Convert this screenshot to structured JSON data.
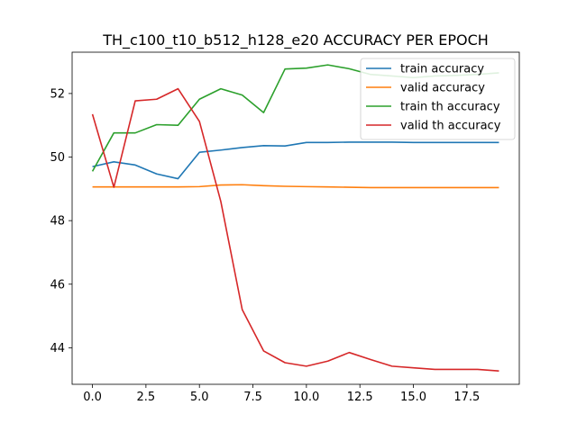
{
  "chart_data": {
    "type": "line",
    "title": "TH_c100_t10_b512_h128_e20 ACCURACY PER EPOCH",
    "xlabel": "",
    "ylabel": "",
    "xlim": [
      -0.95,
      19.95
    ],
    "ylim": [
      42.85,
      53.3
    ],
    "xticks": [
      0,
      2.5,
      5,
      7.5,
      10,
      12.5,
      15,
      17.5
    ],
    "xtick_labels": [
      "0.0",
      "2.5",
      "5.0",
      "7.5",
      "10.0",
      "12.5",
      "15.0",
      "17.5"
    ],
    "yticks": [
      44,
      46,
      48,
      50,
      52
    ],
    "ytick_labels": [
      "44",
      "46",
      "48",
      "50",
      "52"
    ],
    "grid": false,
    "legend_position": "upper-right",
    "x": [
      0,
      1,
      2,
      3,
      4,
      5,
      6,
      7,
      8,
      9,
      10,
      11,
      12,
      13,
      14,
      15,
      16,
      17,
      18,
      19
    ],
    "series": [
      {
        "name": "train accuracy",
        "color": "#1f77b4",
        "values": [
          49.7,
          49.85,
          49.75,
          49.47,
          49.32,
          50.15,
          50.22,
          50.3,
          50.36,
          50.35,
          50.46,
          50.46,
          50.47,
          50.47,
          50.47,
          50.46,
          50.46,
          50.46,
          50.46,
          50.46
        ]
      },
      {
        "name": "valid accuracy",
        "color": "#ff7f0e",
        "values": [
          49.06,
          49.06,
          49.06,
          49.06,
          49.06,
          49.07,
          49.12,
          49.13,
          49.1,
          49.08,
          49.07,
          49.06,
          49.05,
          49.04,
          49.04,
          49.04,
          49.04,
          49.04,
          49.04,
          49.04
        ]
      },
      {
        "name": "train th accuracy",
        "color": "#2ca02c",
        "values": [
          49.55,
          50.76,
          50.76,
          51.02,
          51.0,
          51.82,
          52.15,
          51.95,
          51.4,
          52.77,
          52.8,
          52.9,
          52.78,
          52.6,
          52.55,
          52.5,
          52.55,
          52.57,
          52.6,
          52.65
        ]
      },
      {
        "name": "valid th accuracy",
        "color": "#d62728",
        "values": [
          51.35,
          49.05,
          51.77,
          51.82,
          52.15,
          51.12,
          48.6,
          45.2,
          43.9,
          43.53,
          43.42,
          43.58,
          43.85,
          43.63,
          43.42,
          43.37,
          43.32,
          43.32,
          43.32,
          43.27
        ]
      }
    ]
  }
}
